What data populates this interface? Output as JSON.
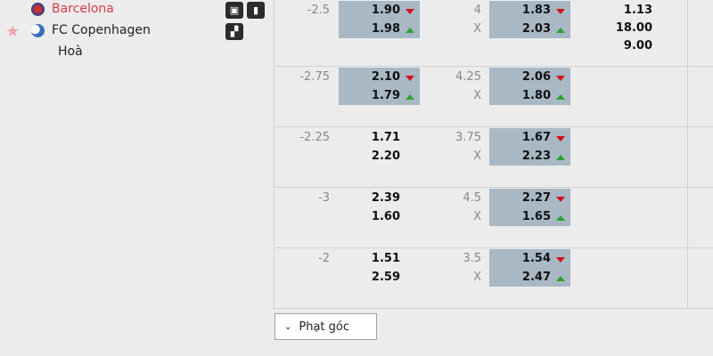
{
  "match": {
    "home": "Barcelona",
    "away": "FC Copenhagen",
    "draw": "Hoà",
    "home_color": "#d9394a"
  },
  "rows": [
    {
      "hcap": "-2.5",
      "home": "1.90",
      "away": "1.98",
      "home_dir": "down",
      "away_dir": "up",
      "hl1": true,
      "ou": "4",
      "ou_x": "X",
      "over": "1.83",
      "under": "2.03",
      "over_dir": "down",
      "under_dir": "up",
      "hl2": true,
      "x12": [
        "1.13",
        "18.00",
        "9.00"
      ]
    },
    {
      "hcap": "-2.75",
      "home": "2.10",
      "away": "1.79",
      "home_dir": "down",
      "away_dir": "up",
      "hl1": true,
      "ou": "4.25",
      "ou_x": "X",
      "over": "2.06",
      "under": "1.80",
      "over_dir": "down",
      "under_dir": "up",
      "hl2": true
    },
    {
      "hcap": "-2.25",
      "home": "1.71",
      "away": "2.20",
      "hl1": false,
      "ou": "3.75",
      "ou_x": "X",
      "over": "1.67",
      "under": "2.23",
      "over_dir": "down",
      "under_dir": "up",
      "hl2": true
    },
    {
      "hcap": "-3",
      "home": "2.39",
      "away": "1.60",
      "hl1": false,
      "ou": "4.5",
      "ou_x": "X",
      "over": "2.27",
      "under": "1.65",
      "over_dir": "down",
      "under_dir": "up",
      "hl2": true
    },
    {
      "hcap": "-2",
      "home": "1.51",
      "away": "2.59",
      "hl1": false,
      "ou": "3.5",
      "ou_x": "X",
      "over": "1.54",
      "under": "2.47",
      "over_dir": "down",
      "under_dir": "up",
      "hl2": true
    }
  ],
  "corner_button": {
    "label": "Phạt góc",
    "icon": "chevron-down-icon"
  }
}
